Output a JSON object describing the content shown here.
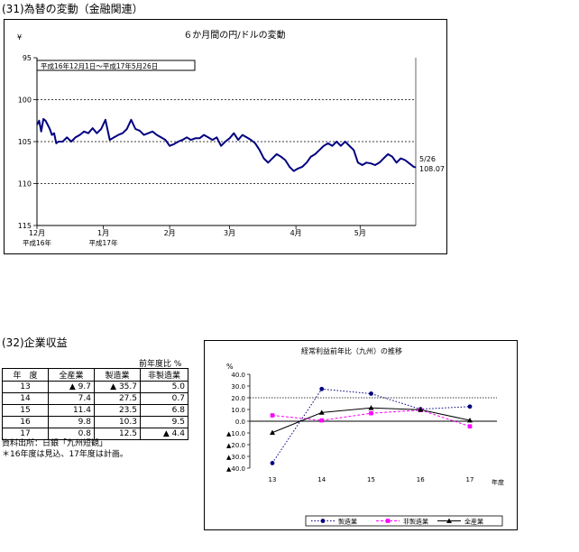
{
  "section1": {
    "title": "(31)為替の変動（金融関連）",
    "chart": {
      "title": "６か月間の円/ドルの変動",
      "period": "平成16年12月1日～平成17年5月26日",
      "yunit": "¥",
      "end_label_date": "5/26",
      "end_label_value": "108.07"
    }
  },
  "section2": {
    "title": "(32)企業収益",
    "table": {
      "caption": "前年度比 %",
      "headers": [
        "年　度",
        "全産業",
        "製造業",
        "非製造業"
      ],
      "rows": [
        {
          "year": "13",
          "all": "▲ 9.7",
          "mfg": "▲ 35.7",
          "nonmfg": "5.0"
        },
        {
          "year": "14",
          "all": "7.4",
          "mfg": "27.5",
          "nonmfg": "0.7"
        },
        {
          "year": "15",
          "all": "11.4",
          "mfg": "23.5",
          "nonmfg": "6.8"
        },
        {
          "year": "16",
          "all": "9.8",
          "mfg": "10.3",
          "nonmfg": "9.5"
        },
        {
          "year": "17",
          "all": "0.8",
          "mfg": "12.5",
          "nonmfg": "▲ 4.4"
        }
      ]
    },
    "notes": [
      "資料出所：日銀「九州短観」",
      "＊16年度は見込、17年度は計画。"
    ]
  },
  "chart_data": [
    {
      "type": "line",
      "title": "６か月間の円/ドルの変動",
      "annotation": "平成16年12月1日～平成17年5月26日",
      "ylabel": "¥",
      "ylim": [
        95,
        115
      ],
      "y_reversed": true,
      "yticks": [
        95,
        100,
        105,
        110,
        115
      ],
      "xlim": [
        0,
        177
      ],
      "xticks": [
        {
          "x": 0,
          "label": "12月",
          "sublabel": "平成16年"
        },
        {
          "x": 31,
          "label": "1月",
          "sublabel": "平成17年"
        },
        {
          "x": 62,
          "label": "2月",
          "sublabel": ""
        },
        {
          "x": 90,
          "label": "3月",
          "sublabel": ""
        },
        {
          "x": 121,
          "label": "4月",
          "sublabel": ""
        },
        {
          "x": 151,
          "label": "5月",
          "sublabel": ""
        }
      ],
      "grid": "dotted at 100, 105, 110",
      "series": [
        {
          "color": "#000080",
          "x": [
            0,
            1,
            2,
            3,
            4,
            5,
            6,
            7,
            8,
            9,
            10,
            12,
            14,
            16,
            18,
            20,
            22,
            24,
            26,
            28,
            30,
            32,
            34,
            36,
            38,
            40,
            42,
            44,
            46,
            48,
            50,
            52,
            54,
            56,
            58,
            60,
            62,
            64,
            66,
            68,
            70,
            72,
            74,
            76,
            78,
            80,
            82,
            84,
            86,
            88,
            90,
            92,
            94,
            96,
            98,
            100,
            102,
            104,
            106,
            108,
            110,
            112,
            114,
            116,
            118,
            120,
            122,
            124,
            126,
            128,
            130,
            132,
            134,
            136,
            138,
            140,
            142,
            144,
            146,
            148,
            150,
            152,
            154,
            156,
            158,
            160,
            162,
            164,
            166,
            168,
            170,
            172,
            174,
            176,
            177
          ],
          "y": [
            103.0,
            102.5,
            103.8,
            102.3,
            102.5,
            103.0,
            103.5,
            104.2,
            104.0,
            105.2,
            105.0,
            105.0,
            104.5,
            105.0,
            104.5,
            104.2,
            103.8,
            104.0,
            103.4,
            104.0,
            103.5,
            102.4,
            104.8,
            104.5,
            104.2,
            104.0,
            103.5,
            102.4,
            103.5,
            103.7,
            104.2,
            104.0,
            103.8,
            104.2,
            104.5,
            104.8,
            105.5,
            105.3,
            105.0,
            104.8,
            104.5,
            104.8,
            104.6,
            104.6,
            104.2,
            104.5,
            104.8,
            104.5,
            105.5,
            105.0,
            104.6,
            104.0,
            104.8,
            104.2,
            104.5,
            104.8,
            105.2,
            106.0,
            107.0,
            107.5,
            107.0,
            106.5,
            106.8,
            107.2,
            108.0,
            108.5,
            108.2,
            108.0,
            107.5,
            106.8,
            106.5,
            106.0,
            105.5,
            105.2,
            105.5,
            105.0,
            105.5,
            105.0,
            105.5,
            106.0,
            107.5,
            107.8,
            107.5,
            107.6,
            107.8,
            107.5,
            107.0,
            106.5,
            106.8,
            107.5,
            107.0,
            107.2,
            107.6,
            108.0,
            108.07
          ]
        }
      ]
    },
    {
      "type": "line",
      "title": "経常利益前年比（九州）の推移",
      "ylabel": "%",
      "xlabel": "年度",
      "categories": [
        "13",
        "14",
        "15",
        "16",
        "17"
      ],
      "ylim": [
        -40,
        40
      ],
      "yticks": [
        "40.0",
        "30.0",
        "20.0",
        "10.0",
        "0.0",
        "▲10.0",
        "▲20.0",
        "▲30.0",
        "▲40.0"
      ],
      "grid": "dotted at 20",
      "legend_position": "bottom-right",
      "series": [
        {
          "name": "製造業",
          "values": [
            -35.7,
            27.5,
            23.5,
            10.3,
            12.5
          ],
          "color": "#000080",
          "marker": "circle",
          "dash": "dotted"
        },
        {
          "name": "非製造業",
          "values": [
            5.0,
            0.7,
            6.8,
            9.5,
            -4.4
          ],
          "color": "#ff00ff",
          "marker": "square",
          "dash": "dashed"
        },
        {
          "name": "全産業",
          "values": [
            -9.7,
            7.4,
            11.4,
            9.8,
            0.8
          ],
          "color": "#000000",
          "marker": "triangle",
          "dash": "solid"
        }
      ]
    }
  ]
}
